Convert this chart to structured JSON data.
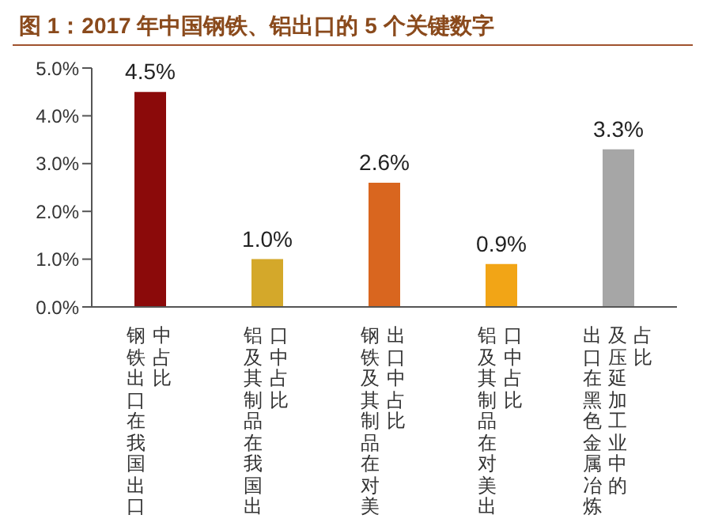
{
  "chart_data": {
    "type": "bar",
    "title": "图 1：2017 年中国钢铁、铝出口的 5 个关键数字",
    "categories": [
      "钢铁出口在我国出口中占比",
      "铝及其制品在我国出口中占比",
      "钢铁及其制品在对美出口中占比",
      "铝及其制品在对美出口中占比",
      "出口在黑色金属冶炼及压延加工业中的占比"
    ],
    "values": [
      4.5,
      1.0,
      2.6,
      0.9,
      3.3
    ],
    "colors": [
      "#8b0a0a",
      "#d4a82a",
      "#d9661f",
      "#f2a516",
      "#a6a6a6"
    ],
    "value_labels": [
      "4.5%",
      "1.0%",
      "2.6%",
      "0.9%",
      "3.3%"
    ],
    "ylim": [
      0,
      5
    ],
    "yticks": [
      {
        "value": 0,
        "label": "0.0%"
      },
      {
        "value": 1,
        "label": "1.0%"
      },
      {
        "value": 2,
        "label": "2.0%"
      },
      {
        "value": 3,
        "label": "3.0%"
      },
      {
        "value": 4,
        "label": "4.0%"
      },
      {
        "value": 5,
        "label": "5.0%"
      }
    ],
    "grid": false,
    "legend": false
  }
}
